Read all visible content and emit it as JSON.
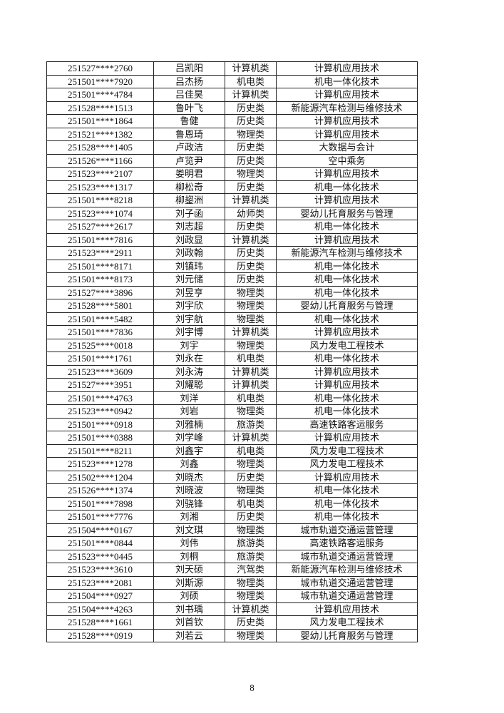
{
  "table": {
    "rows": [
      [
        "251527****2760",
        "吕凯阳",
        "计算机类",
        "计算机应用技术"
      ],
      [
        "251501****7920",
        "吕杰扬",
        "机电类",
        "机电一体化技术"
      ],
      [
        "251501****4784",
        "吕佳昊",
        "计算机类",
        "计算机应用技术"
      ],
      [
        "251528****1513",
        "鲁叶飞",
        "历史类",
        "新能源汽车检测与维修技术"
      ],
      [
        "251501****1864",
        "鲁健",
        "历史类",
        "计算机应用技术"
      ],
      [
        "251521****1382",
        "鲁恩琦",
        "物理类",
        "计算机应用技术"
      ],
      [
        "251528****1405",
        "卢政洁",
        "历史类",
        "大数据与会计"
      ],
      [
        "251526****1166",
        "卢览尹",
        "历史类",
        "空中乘务"
      ],
      [
        "251523****2107",
        "娄明君",
        "物理类",
        "计算机应用技术"
      ],
      [
        "251523****1317",
        "柳松奇",
        "历史类",
        "机电一体化技术"
      ],
      [
        "251501****8218",
        "柳鋆洲",
        "计算机类",
        "计算机应用技术"
      ],
      [
        "251523****1074",
        "刘子函",
        "幼师类",
        "婴幼儿托育服务与管理"
      ],
      [
        "251527****2617",
        "刘志超",
        "历史类",
        "机电一体化技术"
      ],
      [
        "251501****7816",
        "刘政显",
        "计算机类",
        "计算机应用技术"
      ],
      [
        "251523****2911",
        "刘政翰",
        "历史类",
        "新能源汽车检测与维修技术"
      ],
      [
        "251501****8171",
        "刘镇玮",
        "历史类",
        "机电一体化技术"
      ],
      [
        "251501****8173",
        "刘元储",
        "历史类",
        "机电一体化技术"
      ],
      [
        "251527****3896",
        "刘昱亨",
        "物理类",
        "机电一体化技术"
      ],
      [
        "251528****5801",
        "刘宇欣",
        "物理类",
        "婴幼儿托育服务与管理"
      ],
      [
        "251501****5482",
        "刘宇航",
        "物理类",
        "机电一体化技术"
      ],
      [
        "251501****7836",
        "刘宇博",
        "计算机类",
        "计算机应用技术"
      ],
      [
        "251525****0018",
        "刘宇",
        "物理类",
        "风力发电工程技术"
      ],
      [
        "251501****1761",
        "刘永在",
        "机电类",
        "机电一体化技术"
      ],
      [
        "251523****3609",
        "刘永涛",
        "计算机类",
        "计算机应用技术"
      ],
      [
        "251527****3951",
        "刘耀聪",
        "计算机类",
        "计算机应用技术"
      ],
      [
        "251501****4763",
        "刘洋",
        "机电类",
        "机电一体化技术"
      ],
      [
        "251523****0942",
        "刘岩",
        "物理类",
        "机电一体化技术"
      ],
      [
        "251501****0918",
        "刘雅楠",
        "旅游类",
        "高速铁路客运服务"
      ],
      [
        "251501****0388",
        "刘学峰",
        "计算机类",
        "计算机应用技术"
      ],
      [
        "251501****8211",
        "刘鑫宇",
        "机电类",
        "风力发电工程技术"
      ],
      [
        "251523****1278",
        "刘鑫",
        "物理类",
        "风力发电工程技术"
      ],
      [
        "251502****1204",
        "刘晓杰",
        "历史类",
        "计算机应用技术"
      ],
      [
        "251526****1374",
        "刘晓波",
        "物理类",
        "机电一体化技术"
      ],
      [
        "251501****7898",
        "刘骁锋",
        "机电类",
        "机电一体化技术"
      ],
      [
        "251501****7776",
        "刘湘",
        "历史类",
        "机电一体化技术"
      ],
      [
        "251504****0167",
        "刘文琪",
        "物理类",
        "城市轨道交通运营管理"
      ],
      [
        "251501****0844",
        "刘伟",
        "旅游类",
        "高速铁路客运服务"
      ],
      [
        "251523****0445",
        "刘桐",
        "旅游类",
        "城市轨道交通运营管理"
      ],
      [
        "251523****3610",
        "刘天硕",
        "汽驾类",
        "新能源汽车检测与维修技术"
      ],
      [
        "251523****2081",
        "刘斯源",
        "物理类",
        "城市轨道交通运营管理"
      ],
      [
        "251504****0927",
        "刘硕",
        "物理类",
        "城市轨道交通运营管理"
      ],
      [
        "251504****4263",
        "刘书瑀",
        "计算机类",
        "计算机应用技术"
      ],
      [
        "251528****1661",
        "刘首钦",
        "历史类",
        "风力发电工程技术"
      ],
      [
        "251528****0919",
        "刘若云",
        "物理类",
        "婴幼儿托育服务与管理"
      ]
    ]
  },
  "footer": {
    "page_number": "8"
  }
}
